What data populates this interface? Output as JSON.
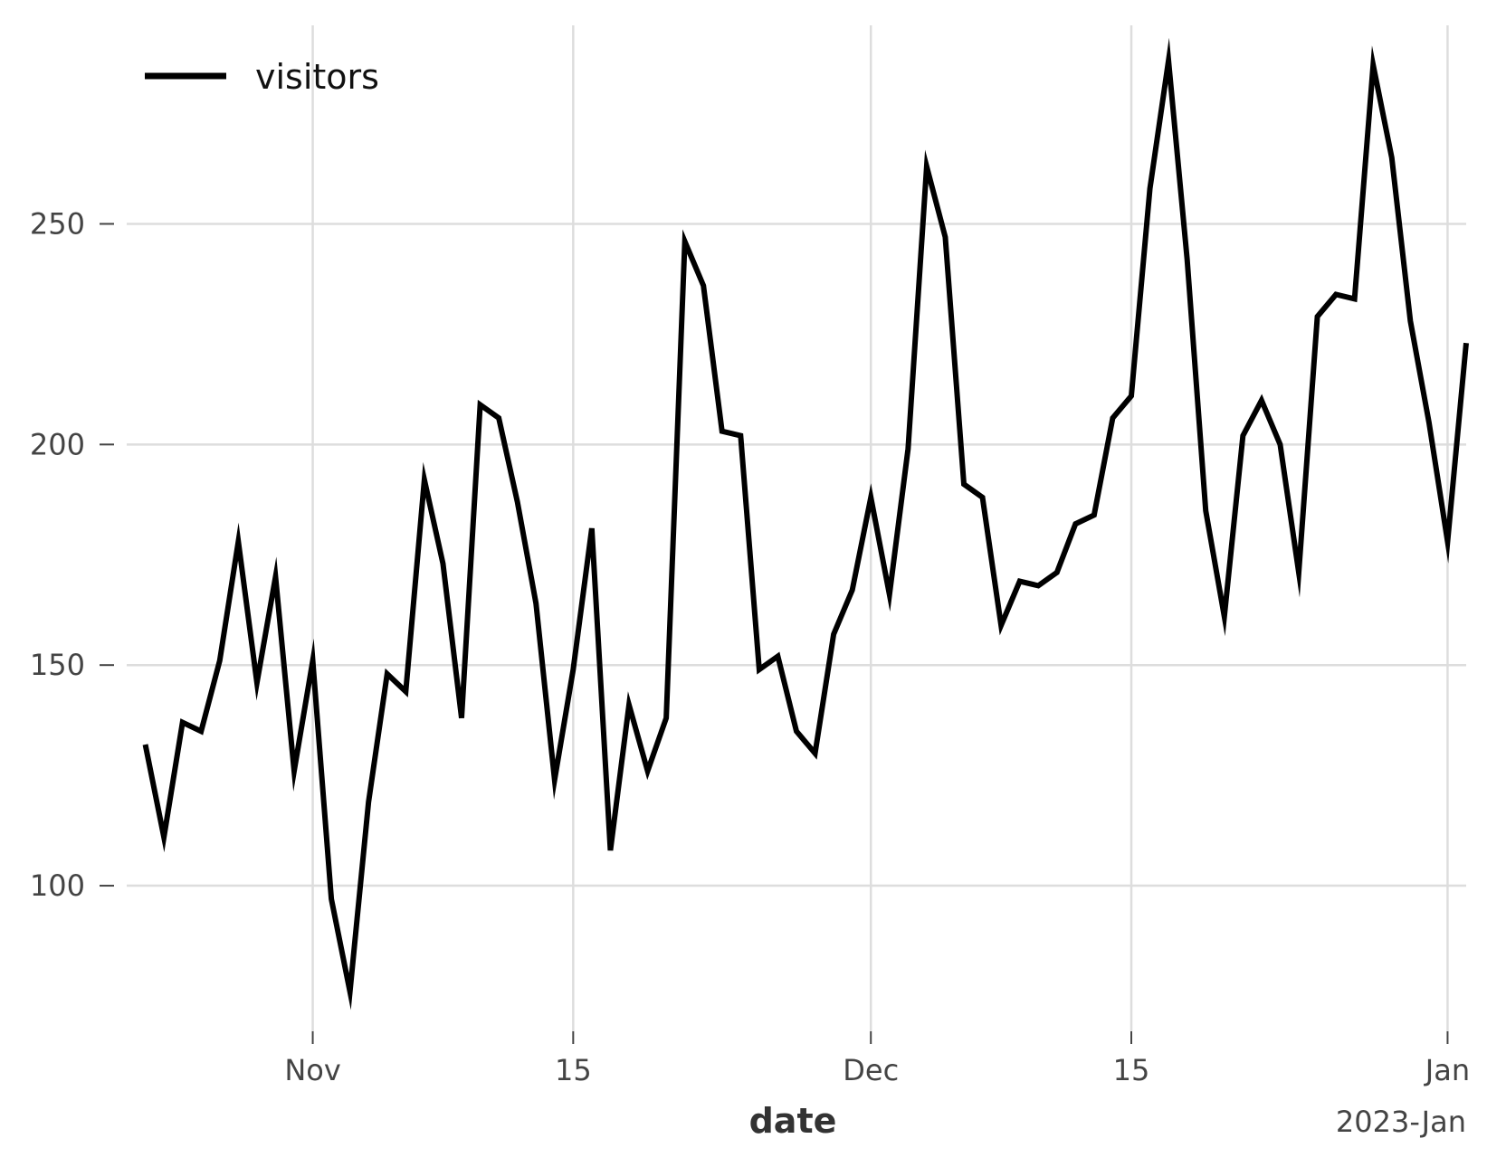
{
  "chart_data": {
    "type": "line",
    "xlabel": "date",
    "ylabel": "",
    "x_start": "2022-10-23",
    "x_step": "1 day",
    "xlim": [
      "2022-10-22",
      "2023-01-02"
    ],
    "ylim": [
      67,
      295
    ],
    "grid": true,
    "legend": {
      "placement": "top-left",
      "entries": [
        "visitors"
      ]
    },
    "x_ticks": [
      {
        "date": "2022-11-01",
        "label": "Nov"
      },
      {
        "date": "2022-11-15",
        "label": "15"
      },
      {
        "date": "2022-12-01",
        "label": "Dec"
      },
      {
        "date": "2022-12-15",
        "label": "15"
      },
      {
        "date": "2023-01-01",
        "label": "Jan"
      }
    ],
    "x_offset_label": "2023-Jan",
    "y_ticks": [
      100,
      150,
      200,
      250
    ],
    "series": [
      {
        "name": "visitors",
        "color": "#000000",
        "values": [
          132,
          111,
          137,
          135,
          151,
          178,
          146,
          170,
          126,
          151,
          97,
          76,
          119,
          148,
          144,
          192,
          173,
          138,
          209,
          206,
          187,
          164,
          124,
          149,
          181,
          108,
          141,
          126,
          138,
          246,
          236,
          203,
          202,
          149,
          152,
          135,
          130,
          157,
          167,
          188,
          166,
          199,
          263,
          247,
          191,
          188,
          159,
          169,
          168,
          171,
          182,
          184,
          206,
          211,
          258,
          287,
          242,
          185,
          161,
          202,
          210,
          200,
          171,
          229,
          234,
          233,
          286,
          265,
          228,
          205,
          178,
          223
        ]
      }
    ]
  }
}
